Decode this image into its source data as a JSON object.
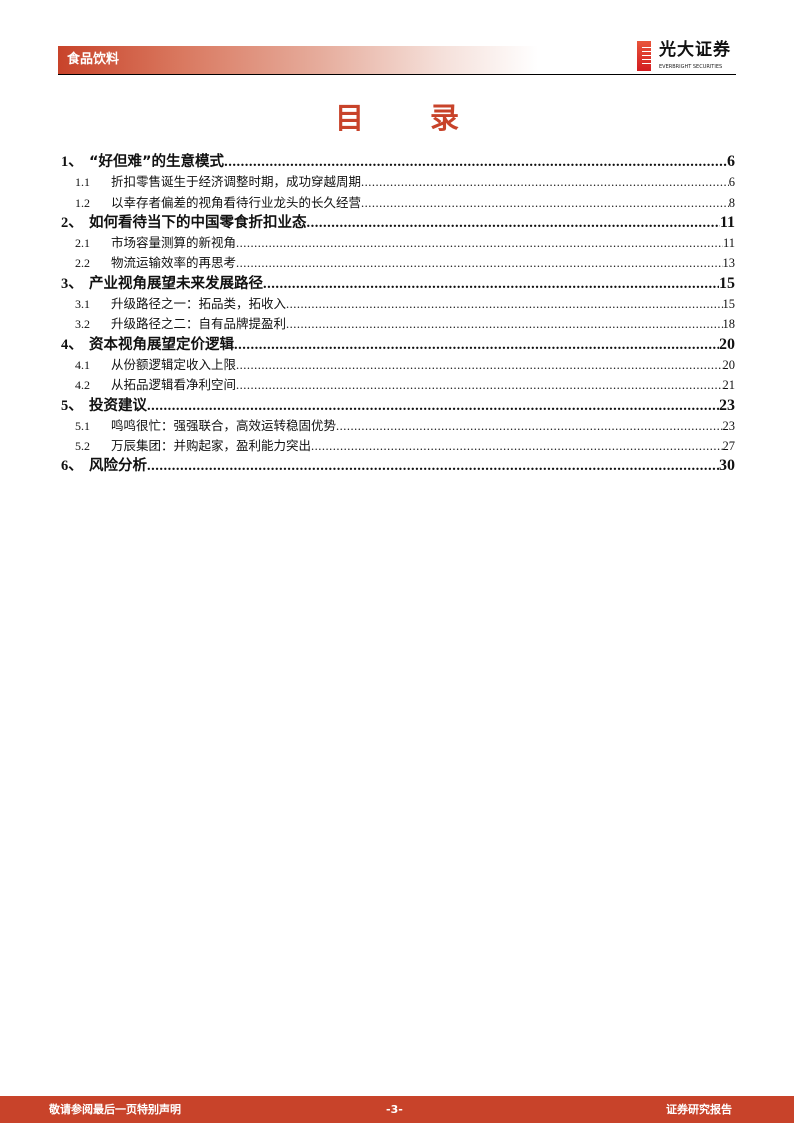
{
  "header": {
    "section": "食品饮料",
    "brand_cn": "光大证券",
    "brand_en": "EVERBRIGHT SECURITIES"
  },
  "title": "目 录",
  "toc": [
    {
      "num": "1、",
      "text": "“好但难”的生意模式",
      "page": "6",
      "level": 1
    },
    {
      "num": "1.1",
      "text": "折扣零售诞生于经济调整时期，成功穿越周期",
      "page": "6",
      "level": 2
    },
    {
      "num": "1.2",
      "text": "以幸存者偏差的视角看待行业龙头的长久经营",
      "page": "8",
      "level": 2
    },
    {
      "num": "2、",
      "text": "如何看待当下的中国零食折扣业态",
      "page": "11",
      "level": 1
    },
    {
      "num": "2.1",
      "text": "市场容量测算的新视角",
      "page": "11",
      "level": 2
    },
    {
      "num": "2.2",
      "text": "物流运输效率的再思考",
      "page": "13",
      "level": 2
    },
    {
      "num": "3、",
      "text": "产业视角展望未来发展路径",
      "page": "15",
      "level": 1
    },
    {
      "num": "3.1",
      "text": "升级路径之一：拓品类，拓收入",
      "page": "15",
      "level": 2
    },
    {
      "num": "3.2",
      "text": "升级路径之二：自有品牌提盈利",
      "page": "18",
      "level": 2
    },
    {
      "num": "4、",
      "text": "资本视角展望定价逻辑",
      "page": "20",
      "level": 1
    },
    {
      "num": "4.1",
      "text": "从份额逻辑定收入上限",
      "page": "20",
      "level": 2
    },
    {
      "num": "4.2",
      "text": "从拓品逻辑看净利空间",
      "page": "21",
      "level": 2
    },
    {
      "num": "5、",
      "text": "投资建议",
      "page": "23",
      "level": 1
    },
    {
      "num": "5.1",
      "text": "鸣鸣很忙：强强联合，高效运转稳固优势",
      "page": "23",
      "level": 2
    },
    {
      "num": "5.2",
      "text": "万辰集团：并购起家，盈利能力突出",
      "page": "27",
      "level": 2
    },
    {
      "num": "6、",
      "text": "风险分析",
      "page": "30",
      "level": 1
    }
  ],
  "footer": {
    "left": "敬请参阅最后一页特别声明",
    "center": "-3-",
    "right": "证券研究报告"
  },
  "colors": {
    "accent": "#c8432a"
  }
}
